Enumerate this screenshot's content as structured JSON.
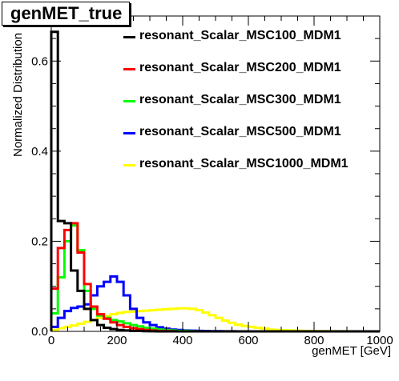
{
  "chart_data": {
    "type": "line",
    "title": "genMET_true",
    "xlabel": "genMET [GeV]",
    "ylabel": "Normalized Distribution",
    "xlim": [
      0,
      1000
    ],
    "ylim": [
      0,
      0.7
    ],
    "x_ticks": [
      "0",
      "200",
      "400",
      "600",
      "800",
      "1000"
    ],
    "y_ticks": [
      "0.0",
      "0.2",
      "0.4",
      "0.6"
    ],
    "bin_width": 20,
    "legend_position": "top-right",
    "series": [
      {
        "name": "resonant_Scalar_MSC100_MDM1",
        "color": "#000000",
        "values": [
          0.665,
          0.245,
          0.24,
          0.135,
          0.09,
          0.05,
          0.025,
          0.014,
          0.008,
          0.005,
          0.003,
          0.002,
          0.001,
          0.001,
          0.0005,
          0.0003,
          0,
          0,
          0,
          0,
          0,
          0,
          0,
          0,
          0,
          0,
          0,
          0,
          0,
          0,
          0,
          0,
          0,
          0,
          0,
          0,
          0,
          0,
          0,
          0,
          0,
          0,
          0,
          0,
          0,
          0,
          0,
          0,
          0,
          0
        ]
      },
      {
        "name": "resonant_Scalar_MSC200_MDM1",
        "color": "#ff0000",
        "values": [
          0.095,
          0.185,
          0.225,
          0.24,
          0.175,
          0.105,
          0.055,
          0.038,
          0.028,
          0.02,
          0.014,
          0.01,
          0.007,
          0.005,
          0.003,
          0.002,
          0.001,
          0.001,
          0.0005,
          0,
          0,
          0,
          0,
          0,
          0,
          0,
          0,
          0,
          0,
          0,
          0,
          0,
          0,
          0,
          0,
          0,
          0,
          0,
          0,
          0,
          0,
          0,
          0,
          0,
          0,
          0,
          0,
          0,
          0,
          0
        ]
      },
      {
        "name": "resonant_Scalar_MSC300_MDM1",
        "color": "#00ff00",
        "values": [
          0.04,
          0.12,
          0.2,
          0.235,
          0.18,
          0.09,
          0.05,
          0.035,
          0.03,
          0.025,
          0.022,
          0.018,
          0.014,
          0.011,
          0.008,
          0.006,
          0.004,
          0.003,
          0.002,
          0.001,
          0.001,
          0.0005,
          0,
          0,
          0,
          0,
          0,
          0,
          0,
          0,
          0,
          0,
          0,
          0,
          0,
          0,
          0,
          0,
          0,
          0,
          0,
          0,
          0,
          0,
          0,
          0,
          0,
          0,
          0,
          0
        ]
      },
      {
        "name": "resonant_Scalar_MSC500_MDM1",
        "color": "#0000ff",
        "values": [
          0.01,
          0.03,
          0.045,
          0.052,
          0.055,
          0.06,
          0.08,
          0.1,
          0.11,
          0.122,
          0.11,
          0.08,
          0.05,
          0.03,
          0.02,
          0.014,
          0.009,
          0.006,
          0.004,
          0.003,
          0.002,
          0.0015,
          0.001,
          0.0008,
          0.0005,
          0.0004,
          0.0003,
          0.0002,
          0,
          0,
          0,
          0,
          0,
          0,
          0,
          0,
          0,
          0,
          0,
          0,
          0,
          0,
          0,
          0,
          0,
          0,
          0,
          0,
          0,
          0
        ]
      },
      {
        "name": "resonant_Scalar_MSC1000_MDM1",
        "color": "#ffff00",
        "values": [
          0.003,
          0.007,
          0.01,
          0.013,
          0.017,
          0.021,
          0.025,
          0.03,
          0.034,
          0.038,
          0.041,
          0.043,
          0.044,
          0.045,
          0.046,
          0.047,
          0.048,
          0.049,
          0.05,
          0.051,
          0.051,
          0.05,
          0.047,
          0.042,
          0.036,
          0.03,
          0.024,
          0.019,
          0.015,
          0.012,
          0.01,
          0.008,
          0.006,
          0.004,
          0.003,
          0.0025,
          0.002,
          0.0015,
          0.001,
          0.0008,
          0.0006,
          0.0005,
          0.0004,
          0.0003,
          0.0002,
          0.0002,
          0.0001,
          0.0001,
          0,
          0
        ]
      }
    ]
  }
}
